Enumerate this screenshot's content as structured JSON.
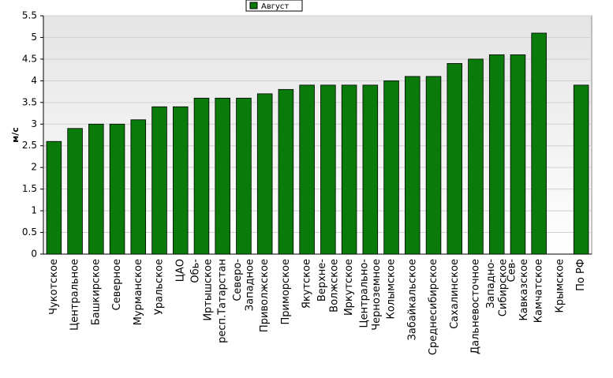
{
  "chart_data": {
    "type": "bar",
    "legend": "Август",
    "y_label": "м/с",
    "color": "#0a7a0a",
    "categories": [
      "Чукотское",
      "Центральное",
      "Башкирское",
      "Северное",
      "Мурманское",
      "Уральское",
      "ЦАО",
      "Обь-\nИртышское",
      "респ.Татарстан",
      "Северо-\nЗападное",
      "Приволжское",
      "Приморское",
      "Якутское",
      "Верхне-\nВолжское",
      "Иркутское",
      "Центрально-\nЧерноземное",
      "Колымское",
      "Забайкальское",
      "Среднесибирское",
      "Сахалинское",
      "Дальневосточное",
      "Западно-\nСибирское",
      "Сев-\nКавказское",
      "Камчатское",
      "Крымское",
      "По РФ"
    ],
    "values": [
      2.6,
      2.9,
      3.0,
      3.0,
      3.1,
      3.4,
      3.4,
      3.6,
      3.6,
      3.6,
      3.7,
      3.8,
      3.9,
      3.9,
      3.9,
      3.9,
      4.0,
      4.1,
      4.1,
      4.4,
      4.5,
      4.6,
      4.6,
      5.1,
      null,
      3.9
    ],
    "ylim": [
      0,
      5.5
    ],
    "yticks": [
      0,
      0.5,
      1,
      1.5,
      2,
      2.5,
      3,
      3.5,
      4,
      4.5,
      5,
      5.5
    ],
    "grid": true
  }
}
